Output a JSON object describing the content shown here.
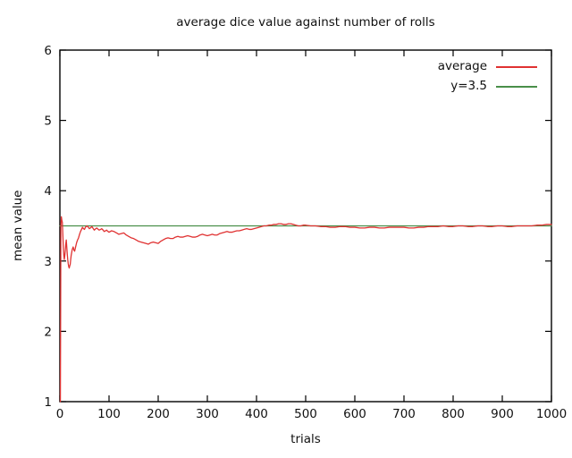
{
  "figure": {
    "title": "average dice value against number of rolls",
    "xlabel": "trials",
    "ylabel": "mean value"
  },
  "legend": {
    "position": "top-right-inside",
    "items": [
      {
        "label": "average",
        "color": "#e03232"
      },
      {
        "label": "y=3.5",
        "color": "#4a8f4a"
      }
    ]
  },
  "chart_data": {
    "type": "line",
    "title": "average dice value against number of rolls",
    "xlabel": "trials",
    "ylabel": "mean value",
    "xlim": [
      0,
      1000
    ],
    "ylim": [
      1,
      6
    ],
    "x_ticks": [
      0,
      100,
      200,
      300,
      400,
      500,
      600,
      700,
      800,
      900,
      1000
    ],
    "y_ticks": [
      1,
      2,
      3,
      4,
      5,
      6
    ],
    "grid": false,
    "tick_style": "inward-mirrored",
    "axis_color": "#000000",
    "background": "#ffffff",
    "series": [
      {
        "name": "average",
        "color": "#e03232",
        "points": [
          [
            1,
            1.0
          ],
          [
            2,
            3.5
          ],
          [
            3,
            3.63
          ],
          [
            4,
            3.58
          ],
          [
            5,
            3.55
          ],
          [
            6,
            3.38
          ],
          [
            7,
            3.2
          ],
          [
            8,
            3.08
          ],
          [
            9,
            3.02
          ],
          [
            10,
            3.08
          ],
          [
            11,
            3.15
          ],
          [
            12,
            3.24
          ],
          [
            13,
            3.3
          ],
          [
            14,
            3.2
          ],
          [
            15,
            3.1
          ],
          [
            16,
            3.02
          ],
          [
            17,
            2.96
          ],
          [
            18,
            2.92
          ],
          [
            19,
            2.9
          ],
          [
            20,
            2.93
          ],
          [
            21,
            2.95
          ],
          [
            22,
            3.02
          ],
          [
            23,
            3.08
          ],
          [
            24,
            3.12
          ],
          [
            25,
            3.16
          ],
          [
            26,
            3.18
          ],
          [
            27,
            3.2
          ],
          [
            28,
            3.17
          ],
          [
            29,
            3.15
          ],
          [
            30,
            3.14
          ],
          [
            32,
            3.2
          ],
          [
            34,
            3.26
          ],
          [
            36,
            3.3
          ],
          [
            38,
            3.33
          ],
          [
            40,
            3.38
          ],
          [
            42,
            3.42
          ],
          [
            44,
            3.45
          ],
          [
            46,
            3.48
          ],
          [
            48,
            3.46
          ],
          [
            50,
            3.45
          ],
          [
            52,
            3.48
          ],
          [
            55,
            3.5
          ],
          [
            58,
            3.48
          ],
          [
            60,
            3.46
          ],
          [
            62,
            3.47
          ],
          [
            65,
            3.49
          ],
          [
            68,
            3.46
          ],
          [
            70,
            3.44
          ],
          [
            73,
            3.46
          ],
          [
            75,
            3.47
          ],
          [
            78,
            3.45
          ],
          [
            80,
            3.44
          ],
          [
            83,
            3.45
          ],
          [
            85,
            3.46
          ],
          [
            88,
            3.44
          ],
          [
            90,
            3.42
          ],
          [
            93,
            3.43
          ],
          [
            95,
            3.44
          ],
          [
            98,
            3.42
          ],
          [
            100,
            3.41
          ],
          [
            105,
            3.43
          ],
          [
            110,
            3.42
          ],
          [
            115,
            3.4
          ],
          [
            120,
            3.38
          ],
          [
            125,
            3.39
          ],
          [
            130,
            3.4
          ],
          [
            135,
            3.37
          ],
          [
            140,
            3.35
          ],
          [
            145,
            3.33
          ],
          [
            150,
            3.32
          ],
          [
            155,
            3.3
          ],
          [
            160,
            3.28
          ],
          [
            165,
            3.27
          ],
          [
            170,
            3.26
          ],
          [
            175,
            3.25
          ],
          [
            180,
            3.24
          ],
          [
            185,
            3.26
          ],
          [
            190,
            3.27
          ],
          [
            195,
            3.26
          ],
          [
            200,
            3.25
          ],
          [
            205,
            3.28
          ],
          [
            210,
            3.3
          ],
          [
            215,
            3.32
          ],
          [
            220,
            3.33
          ],
          [
            225,
            3.32
          ],
          [
            230,
            3.32
          ],
          [
            235,
            3.34
          ],
          [
            240,
            3.35
          ],
          [
            245,
            3.34
          ],
          [
            250,
            3.34
          ],
          [
            255,
            3.35
          ],
          [
            260,
            3.36
          ],
          [
            265,
            3.35
          ],
          [
            270,
            3.34
          ],
          [
            275,
            3.34
          ],
          [
            280,
            3.35
          ],
          [
            285,
            3.37
          ],
          [
            290,
            3.38
          ],
          [
            295,
            3.37
          ],
          [
            300,
            3.36
          ],
          [
            305,
            3.37
          ],
          [
            310,
            3.38
          ],
          [
            315,
            3.37
          ],
          [
            320,
            3.37
          ],
          [
            325,
            3.39
          ],
          [
            330,
            3.4
          ],
          [
            335,
            3.41
          ],
          [
            340,
            3.42
          ],
          [
            345,
            3.41
          ],
          [
            350,
            3.41
          ],
          [
            355,
            3.42
          ],
          [
            360,
            3.43
          ],
          [
            365,
            3.43
          ],
          [
            370,
            3.44
          ],
          [
            375,
            3.45
          ],
          [
            380,
            3.46
          ],
          [
            385,
            3.45
          ],
          [
            390,
            3.45
          ],
          [
            395,
            3.46
          ],
          [
            400,
            3.47
          ],
          [
            405,
            3.48
          ],
          [
            410,
            3.49
          ],
          [
            415,
            3.5
          ],
          [
            420,
            3.5
          ],
          [
            425,
            3.51
          ],
          [
            430,
            3.51
          ],
          [
            435,
            3.52
          ],
          [
            440,
            3.52
          ],
          [
            445,
            3.53
          ],
          [
            450,
            3.53
          ],
          [
            455,
            3.52
          ],
          [
            460,
            3.52
          ],
          [
            465,
            3.53
          ],
          [
            470,
            3.53
          ],
          [
            475,
            3.52
          ],
          [
            480,
            3.51
          ],
          [
            485,
            3.5
          ],
          [
            490,
            3.5
          ],
          [
            495,
            3.51
          ],
          [
            500,
            3.51
          ],
          [
            510,
            3.5
          ],
          [
            520,
            3.5
          ],
          [
            530,
            3.49
          ],
          [
            540,
            3.49
          ],
          [
            550,
            3.48
          ],
          [
            560,
            3.48
          ],
          [
            570,
            3.49
          ],
          [
            580,
            3.49
          ],
          [
            590,
            3.48
          ],
          [
            600,
            3.48
          ],
          [
            610,
            3.47
          ],
          [
            620,
            3.47
          ],
          [
            630,
            3.48
          ],
          [
            640,
            3.48
          ],
          [
            650,
            3.47
          ],
          [
            660,
            3.47
          ],
          [
            670,
            3.48
          ],
          [
            680,
            3.48
          ],
          [
            690,
            3.48
          ],
          [
            700,
            3.48
          ],
          [
            710,
            3.47
          ],
          [
            720,
            3.47
          ],
          [
            730,
            3.48
          ],
          [
            740,
            3.48
          ],
          [
            750,
            3.49
          ],
          [
            760,
            3.49
          ],
          [
            770,
            3.49
          ],
          [
            780,
            3.5
          ],
          [
            790,
            3.49
          ],
          [
            800,
            3.49
          ],
          [
            810,
            3.5
          ],
          [
            820,
            3.5
          ],
          [
            830,
            3.49
          ],
          [
            840,
            3.49
          ],
          [
            850,
            3.5
          ],
          [
            860,
            3.5
          ],
          [
            870,
            3.49
          ],
          [
            880,
            3.49
          ],
          [
            890,
            3.5
          ],
          [
            900,
            3.5
          ],
          [
            910,
            3.49
          ],
          [
            920,
            3.49
          ],
          [
            930,
            3.5
          ],
          [
            940,
            3.5
          ],
          [
            950,
            3.5
          ],
          [
            960,
            3.5
          ],
          [
            970,
            3.51
          ],
          [
            980,
            3.51
          ],
          [
            990,
            3.52
          ],
          [
            1000,
            3.52
          ]
        ]
      },
      {
        "name": "y=3.5",
        "color": "#4a8f4a",
        "points": [
          [
            0,
            3.5
          ],
          [
            1000,
            3.5
          ]
        ]
      }
    ]
  }
}
